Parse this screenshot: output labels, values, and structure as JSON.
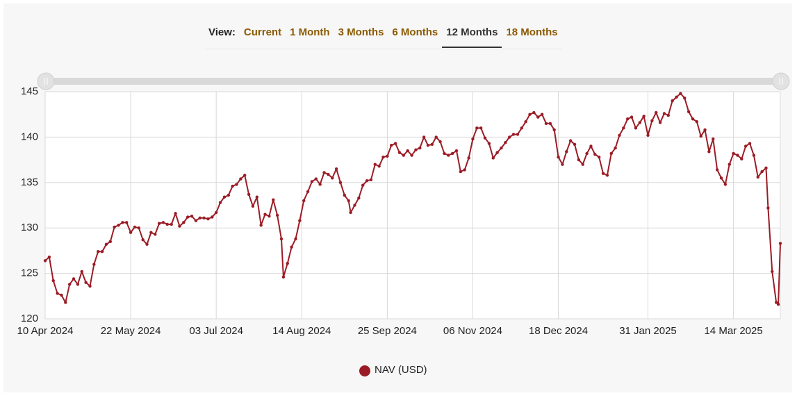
{
  "toolbar": {
    "label": "View:",
    "options": [
      "Current",
      "1 Month",
      "3 Months",
      "6 Months",
      "12 Months",
      "18 Months"
    ],
    "selected": 4
  },
  "chart_data": {
    "type": "line",
    "x": [
      "2024-04-10",
      "2024-04-12",
      "2024-04-14",
      "2024-04-16",
      "2024-04-18",
      "2024-04-20",
      "2024-04-22",
      "2024-04-24",
      "2024-04-26",
      "2024-04-28",
      "2024-04-30",
      "2024-05-02",
      "2024-05-04",
      "2024-05-06",
      "2024-05-08",
      "2024-05-10",
      "2024-05-12",
      "2024-05-14",
      "2024-05-16",
      "2024-05-18",
      "2024-05-20",
      "2024-05-22",
      "2024-05-24",
      "2024-05-26",
      "2024-05-28",
      "2024-05-30",
      "2024-06-01",
      "2024-06-03",
      "2024-06-05",
      "2024-06-07",
      "2024-06-09",
      "2024-06-11",
      "2024-06-13",
      "2024-06-15",
      "2024-06-17",
      "2024-06-19",
      "2024-06-21",
      "2024-06-23",
      "2024-06-25",
      "2024-06-27",
      "2024-06-29",
      "2024-07-01",
      "2024-07-03",
      "2024-07-05",
      "2024-07-07",
      "2024-07-09",
      "2024-07-11",
      "2024-07-13",
      "2024-07-15",
      "2024-07-17",
      "2024-07-19",
      "2024-07-21",
      "2024-07-23",
      "2024-07-25",
      "2024-07-27",
      "2024-07-29",
      "2024-07-31",
      "2024-08-02",
      "2024-08-04",
      "2024-08-05",
      "2024-08-07",
      "2024-08-09",
      "2024-08-11",
      "2024-08-13",
      "2024-08-15",
      "2024-08-17",
      "2024-08-19",
      "2024-08-21",
      "2024-08-23",
      "2024-08-25",
      "2024-08-27",
      "2024-08-29",
      "2024-08-31",
      "2024-09-02",
      "2024-09-04",
      "2024-09-06",
      "2024-09-07",
      "2024-09-09",
      "2024-09-11",
      "2024-09-13",
      "2024-09-15",
      "2024-09-17",
      "2024-09-19",
      "2024-09-21",
      "2024-09-23",
      "2024-09-25",
      "2024-09-27",
      "2024-09-29",
      "2024-10-01",
      "2024-10-03",
      "2024-10-05",
      "2024-10-07",
      "2024-10-09",
      "2024-10-11",
      "2024-10-13",
      "2024-10-15",
      "2024-10-17",
      "2024-10-19",
      "2024-10-21",
      "2024-10-23",
      "2024-10-25",
      "2024-10-27",
      "2024-10-29",
      "2024-10-31",
      "2024-11-02",
      "2024-11-04",
      "2024-11-06",
      "2024-11-08",
      "2024-11-10",
      "2024-11-12",
      "2024-11-14",
      "2024-11-16",
      "2024-11-18",
      "2024-11-20",
      "2024-11-22",
      "2024-11-24",
      "2024-11-26",
      "2024-11-28",
      "2024-11-30",
      "2024-12-02",
      "2024-12-04",
      "2024-12-06",
      "2024-12-08",
      "2024-12-10",
      "2024-12-12",
      "2024-12-14",
      "2024-12-16",
      "2024-12-18",
      "2024-12-20",
      "2024-12-22",
      "2024-12-24",
      "2024-12-26",
      "2024-12-28",
      "2024-12-30",
      "2025-01-01",
      "2025-01-03",
      "2025-01-05",
      "2025-01-07",
      "2025-01-09",
      "2025-01-11",
      "2025-01-13",
      "2025-01-15",
      "2025-01-17",
      "2025-01-19",
      "2025-01-21",
      "2025-01-23",
      "2025-01-25",
      "2025-01-27",
      "2025-01-29",
      "2025-01-31",
      "2025-02-02",
      "2025-02-04",
      "2025-02-06",
      "2025-02-08",
      "2025-02-10",
      "2025-02-12",
      "2025-02-14",
      "2025-02-16",
      "2025-02-18",
      "2025-02-20",
      "2025-02-22",
      "2025-02-24",
      "2025-02-26",
      "2025-02-28",
      "2025-03-02",
      "2025-03-04",
      "2025-03-06",
      "2025-03-08",
      "2025-03-10",
      "2025-03-12",
      "2025-03-14",
      "2025-03-16",
      "2025-03-18",
      "2025-03-20",
      "2025-03-22",
      "2025-03-24",
      "2025-03-26",
      "2025-03-28",
      "2025-03-30",
      "2025-03-31",
      "2025-04-02",
      "2025-04-04",
      "2025-04-05",
      "2025-04-06"
    ],
    "series": [
      {
        "name": "NAV (USD)",
        "color": "#9b1c26",
        "values": [
          126.4,
          126.8,
          124.2,
          122.8,
          122.6,
          121.8,
          123.8,
          124.4,
          123.8,
          125.2,
          124.0,
          123.6,
          126.0,
          127.4,
          127.4,
          128.2,
          128.5,
          130.1,
          130.3,
          130.6,
          130.6,
          129.5,
          130.1,
          130.0,
          128.7,
          128.2,
          129.5,
          129.3,
          130.5,
          130.6,
          130.4,
          130.4,
          131.6,
          130.2,
          130.6,
          131.2,
          131.3,
          130.8,
          131.1,
          131.1,
          131.0,
          131.2,
          131.7,
          132.8,
          133.4,
          133.6,
          134.6,
          134.8,
          135.4,
          135.8,
          133.7,
          132.4,
          133.4,
          130.3,
          131.5,
          131.3,
          133.1,
          131.4,
          128.8,
          124.6,
          126.1,
          127.9,
          128.8,
          130.8,
          133.0,
          134.0,
          135.1,
          135.4,
          134.8,
          136.1,
          135.9,
          135.5,
          136.5,
          135.0,
          133.6,
          133.0,
          131.7,
          132.5,
          133.3,
          134.7,
          135.2,
          135.3,
          137.0,
          136.8,
          137.8,
          137.9,
          139.1,
          139.3,
          138.3,
          138.0,
          138.5,
          138.0,
          138.6,
          138.8,
          140.0,
          139.1,
          139.2,
          140.0,
          139.5,
          138.2,
          138.0,
          138.2,
          138.5,
          136.2,
          136.4,
          137.7,
          139.8,
          141.0,
          141.0,
          139.9,
          139.3,
          137.7,
          138.3,
          138.8,
          139.4,
          140.0,
          140.3,
          140.3,
          141.0,
          141.7,
          142.5,
          142.7,
          142.2,
          142.5,
          141.5,
          141.5,
          140.8,
          137.8,
          137.0,
          138.4,
          139.6,
          139.2,
          137.5,
          137.0,
          138.2,
          139.0,
          138.1,
          137.8,
          136.0,
          135.8,
          138.2,
          138.8,
          140.2,
          141.0,
          142.0,
          142.2,
          141.0,
          141.6,
          142.3,
          140.2,
          141.8,
          142.7,
          141.6,
          142.6,
          142.4,
          144.0,
          144.4,
          144.8,
          144.3,
          142.8,
          142.0,
          141.7,
          140.1,
          140.8,
          138.4,
          139.8,
          136.4,
          135.5,
          134.8,
          137.0,
          138.2,
          138.0,
          137.6,
          139.0,
          139.3,
          138.0,
          135.6,
          136.2,
          136.6,
          132.2,
          125.2,
          121.8,
          121.6,
          128.3
        ]
      }
    ],
    "xlim": [
      "2024-04-10",
      "2025-04-06"
    ],
    "xticks": [
      {
        "value": "2024-04-10",
        "label": "10 Apr 2024"
      },
      {
        "value": "2024-05-22",
        "label": "22 May 2024"
      },
      {
        "value": "2024-07-03",
        "label": "03 Jul 2024"
      },
      {
        "value": "2024-08-14",
        "label": "14 Aug 2024"
      },
      {
        "value": "2024-09-25",
        "label": "25 Sep 2024"
      },
      {
        "value": "2024-11-06",
        "label": "06 Nov 2024"
      },
      {
        "value": "2024-12-18",
        "label": "18 Dec 2024"
      },
      {
        "value": "2025-01-31",
        "label": "31 Jan 2025"
      },
      {
        "value": "2025-03-14",
        "label": "14 Mar 2025"
      }
    ],
    "ylim": [
      120,
      145
    ],
    "yticks": [
      120,
      125,
      130,
      135,
      140,
      145
    ],
    "grid": true,
    "legend": "bottom"
  }
}
